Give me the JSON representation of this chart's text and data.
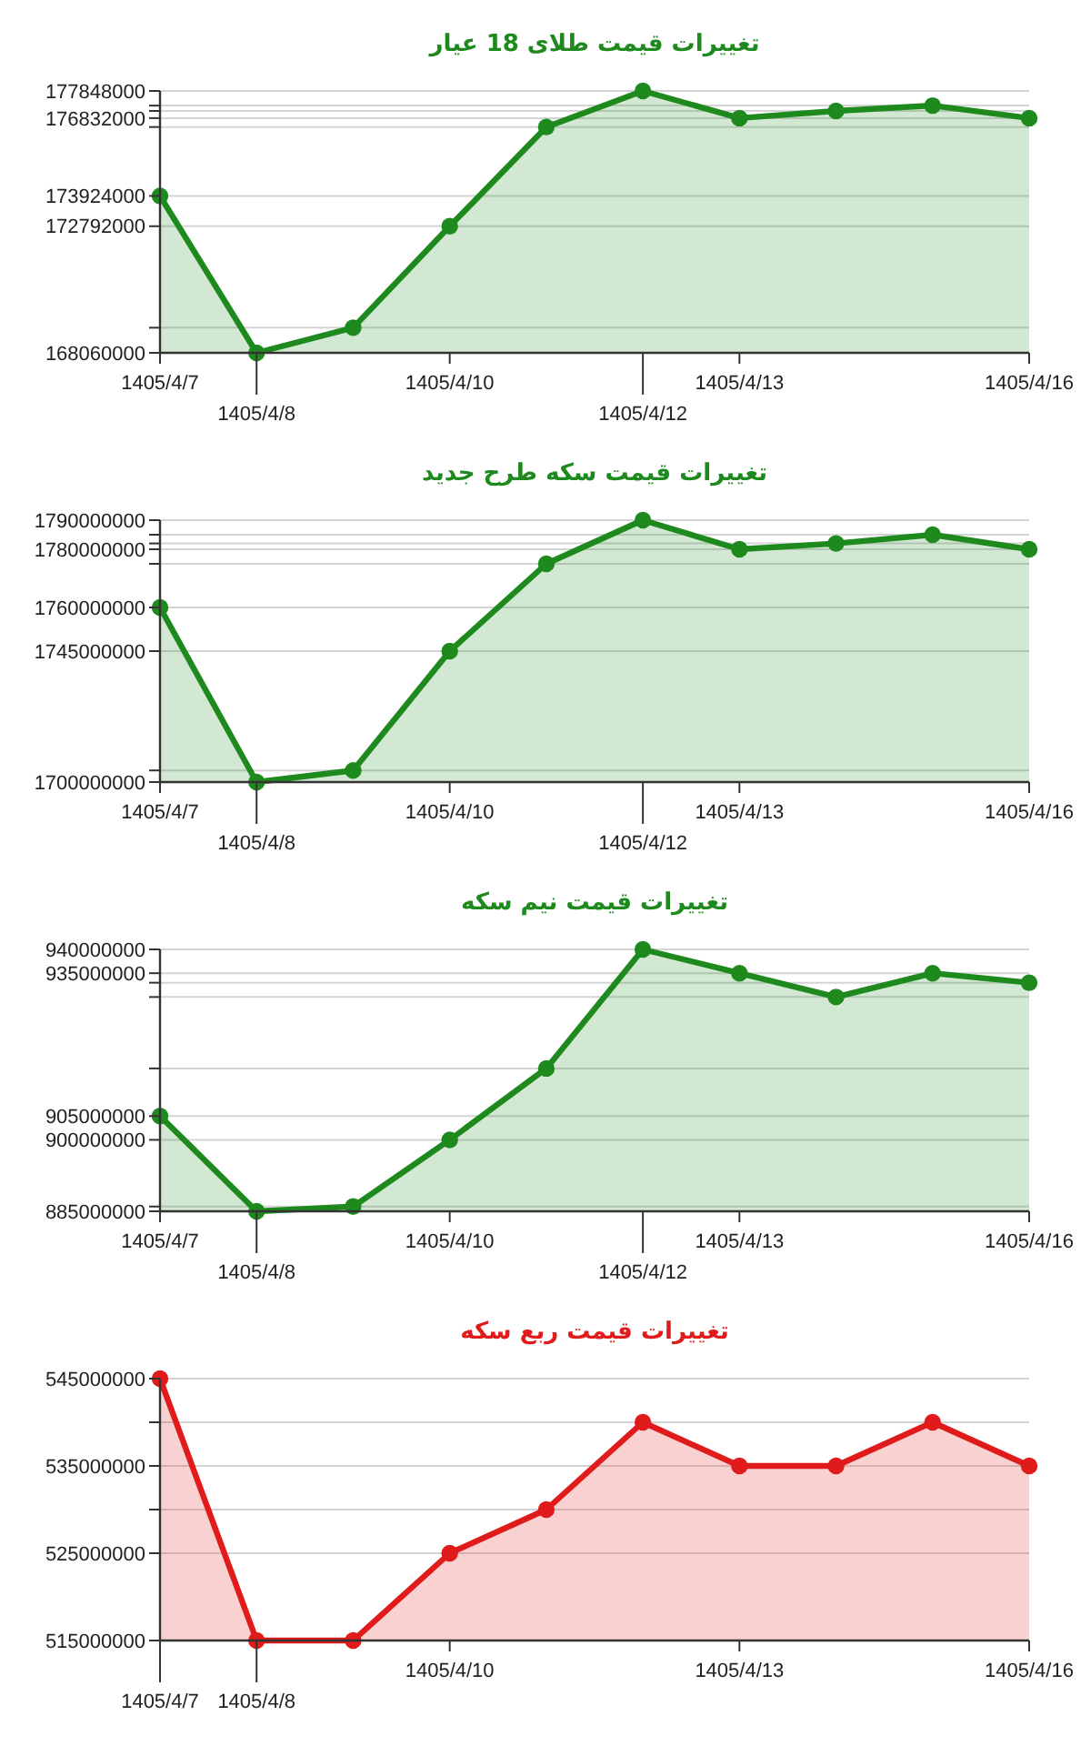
{
  "chart_data": [
    {
      "type": "area",
      "title": "تغییرات قیمت طلای 18 عیار",
      "categories": [
        "1405/4/7",
        "1405/4/8",
        null,
        "1405/4/10",
        null,
        "1405/4/12",
        "1405/4/13",
        null,
        null,
        "1405/4/16"
      ],
      "series": [
        {
          "color": "#1e8a1e",
          "values": [
            173924000,
            168060000,
            169000000,
            172792000,
            176500000,
            177848000,
            176832000,
            177100000,
            177300000,
            176832000
          ]
        }
      ],
      "ylim": [
        168060000,
        177848000
      ],
      "yticks": [
        168060000,
        {
          "value": 169000000,
          "label": null
        },
        172792000,
        173924000,
        {
          "value": 176500000,
          "label": null
        },
        176832000,
        {
          "value": 177100000,
          "label": null
        },
        {
          "value": 177300000,
          "label": null
        },
        177848000
      ],
      "grid": true,
      "marker": "circle"
    },
    {
      "type": "area",
      "title": "تغییرات قیمت سکه طرح جدید",
      "categories": [
        "1405/4/7",
        "1405/4/8",
        null,
        "1405/4/10",
        null,
        "1405/4/12",
        "1405/4/13",
        null,
        null,
        "1405/4/16"
      ],
      "series": [
        {
          "color": "#1e8a1e",
          "values": [
            1760000000,
            1700000000,
            1704000000,
            1745000000,
            1775000000,
            1790000000,
            1780000000,
            1782000000,
            1785000000,
            1780000000
          ]
        }
      ],
      "ylim": [
        1700000000,
        1790000000
      ],
      "yticks": [
        1700000000,
        {
          "value": 1704000000,
          "label": null
        },
        1745000000,
        1760000000,
        {
          "value": 1775000000,
          "label": null
        },
        1780000000,
        {
          "value": 1782000000,
          "label": null
        },
        {
          "value": 1785000000,
          "label": null
        },
        1790000000
      ],
      "grid": true,
      "marker": "circle"
    },
    {
      "type": "area",
      "title": "تغییرات قیمت نیم سکه",
      "categories": [
        "1405/4/7",
        "1405/4/8",
        null,
        "1405/4/10",
        null,
        "1405/4/12",
        "1405/4/13",
        null,
        null,
        "1405/4/16"
      ],
      "series": [
        {
          "color": "#1e8a1e",
          "values": [
            905000000,
            885000000,
            886000000,
            900000000,
            915000000,
            940000000,
            935000000,
            930000000,
            935000000,
            933000000
          ]
        }
      ],
      "ylim": [
        885000000,
        940000000
      ],
      "yticks": [
        885000000,
        {
          "value": 886000000,
          "label": null
        },
        900000000,
        905000000,
        {
          "value": 915000000,
          "label": null
        },
        {
          "value": 930000000,
          "label": null
        },
        {
          "value": 933000000,
          "label": null
        },
        935000000,
        940000000
      ],
      "grid": true,
      "marker": "circle"
    },
    {
      "type": "area",
      "title": "تغییرات قیمت ربع سکه",
      "categories": [
        "1405/4/7",
        "1405/4/8",
        null,
        "1405/4/10",
        null,
        null,
        "1405/4/13",
        null,
        null,
        "1405/4/16"
      ],
      "series": [
        {
          "color": "#e01b1b",
          "values": [
            545000000,
            515000000,
            515000000,
            525000000,
            530000000,
            540000000,
            535000000,
            535000000,
            540000000,
            535000000
          ]
        }
      ],
      "ylim": [
        515000000,
        545000000
      ],
      "yticks": [
        515000000,
        525000000,
        {
          "value": 530000000,
          "label": null
        },
        535000000,
        {
          "value": 540000000,
          "label": null
        },
        545000000
      ],
      "grid": true,
      "marker": "circle"
    }
  ]
}
